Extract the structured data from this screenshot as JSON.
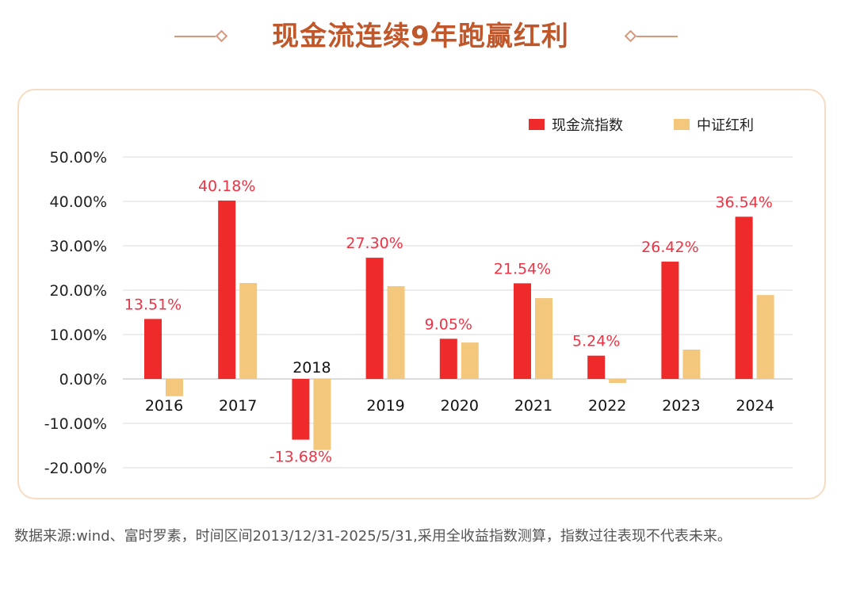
{
  "title": "现金流连续9年跑赢红利",
  "colors": {
    "title": "#c0572a",
    "series1": "#ee2a2a",
    "series2": "#f3c77c",
    "label": "#ee3344"
  },
  "chart_data": {
    "type": "bar",
    "categories": [
      "2016",
      "2017",
      "2018",
      "2019",
      "2020",
      "2021",
      "2022",
      "2023",
      "2024"
    ],
    "series": [
      {
        "name": "现金流指数",
        "values": [
          13.51,
          40.18,
          -13.68,
          27.3,
          9.05,
          21.54,
          5.24,
          26.42,
          36.54
        ],
        "labels": [
          "13.51%",
          "40.18%",
          "-13.68%",
          "27.30%",
          "9.05%",
          "21.54%",
          "5.24%",
          "26.42%",
          "36.54%"
        ]
      },
      {
        "name": "中证红利",
        "values": [
          -3.9,
          21.6,
          -16.0,
          20.9,
          8.2,
          18.2,
          -0.9,
          6.6,
          18.9
        ]
      }
    ],
    "yticks": [
      "50.00%",
      "40.00%",
      "30.00%",
      "20.00%",
      "10.00%",
      "0.00%",
      "-10.00%",
      "-20.00%"
    ],
    "ytick_values": [
      50,
      40,
      30,
      20,
      10,
      0,
      -10,
      -20
    ],
    "ylim": [
      -20,
      50
    ],
    "grid": true,
    "legend": "top-right"
  },
  "note": "数据来源:wind、富时罗素，时间区间2013/12/31-2025/5/31,采用全收益指数测算，指数过往表现不代表未来。"
}
